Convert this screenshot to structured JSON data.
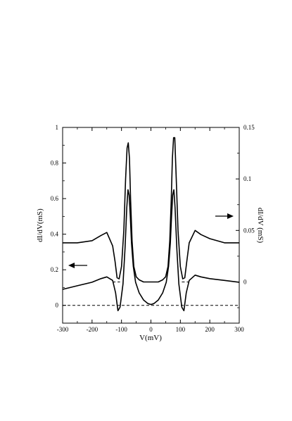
{
  "chart_data": {
    "type": "line",
    "xlabel": "V(mV)",
    "ylabel_left": "dI/dV(mS)",
    "ylabel_right": "dI/dV (mS)",
    "xlim": [
      -300,
      300
    ],
    "ylim_left": [
      -0.1,
      1.0
    ],
    "ylim_right": [
      -0.04,
      0.15
    ],
    "x_ticks": [
      -300,
      -200,
      -100,
      0,
      100,
      200,
      300
    ],
    "x_tick_labels": [
      "-300",
      "-200",
      "-100",
      "0",
      "100",
      "200",
      "300"
    ],
    "y_left_ticks": [
      0,
      0.2,
      0.4,
      0.6,
      0.8,
      1
    ],
    "y_left_tick_labels": [
      "0",
      "0.2",
      "0.4",
      "0.6",
      "0.8",
      "1"
    ],
    "y_right_ticks": [
      0,
      0.05,
      0.1,
      0.15
    ],
    "y_right_tick_labels": [
      "0",
      "0.05",
      "0.1",
      "0.15"
    ],
    "grid": false,
    "legend": "none",
    "series": [
      {
        "axis": "left",
        "x": [
          -300,
          -250,
          -200,
          -170,
          -150,
          -130,
          -120,
          -112,
          -105,
          -95,
          -88,
          -82,
          -78,
          -74,
          -70,
          -66,
          -60,
          -52,
          -40,
          -25,
          -10,
          0,
          10,
          25,
          40,
          52,
          60,
          66,
          70,
          74,
          78,
          82,
          88,
          95,
          105,
          112,
          120,
          130,
          150,
          170,
          200,
          250,
          300
        ],
        "y": [
          0.09,
          0.11,
          0.13,
          0.15,
          0.16,
          0.14,
          0.07,
          -0.03,
          -0.01,
          0.12,
          0.32,
          0.55,
          0.65,
          0.62,
          0.5,
          0.35,
          0.22,
          0.13,
          0.07,
          0.03,
          0.01,
          0.005,
          0.01,
          0.03,
          0.07,
          0.13,
          0.22,
          0.35,
          0.5,
          0.62,
          0.65,
          0.55,
          0.32,
          0.12,
          -0.01,
          -0.03,
          0.07,
          0.14,
          0.17,
          0.16,
          0.15,
          0.14,
          0.13
        ]
      },
      {
        "axis": "right",
        "x": [
          -300,
          -250,
          -200,
          -170,
          -150,
          -130,
          -122,
          -115,
          -108,
          -100,
          -92,
          -86,
          -81,
          -77,
          -73,
          -69,
          -64,
          -58,
          -50,
          -40,
          -25,
          0,
          25,
          40,
          50,
          58,
          64,
          69,
          73,
          77,
          81,
          86,
          92,
          100,
          108,
          115,
          122,
          130,
          150,
          170,
          200,
          250,
          300
        ],
        "y": [
          0.038,
          0.038,
          0.04,
          0.045,
          0.048,
          0.035,
          0.02,
          0.004,
          0.003,
          0.015,
          0.05,
          0.1,
          0.13,
          0.135,
          0.12,
          0.08,
          0.04,
          0.015,
          0.005,
          0.002,
          0.0,
          0.0,
          0.0,
          0.002,
          0.005,
          0.015,
          0.04,
          0.08,
          0.12,
          0.14,
          0.14,
          0.1,
          0.05,
          0.015,
          0.003,
          0.004,
          0.02,
          0.038,
          0.05,
          0.046,
          0.042,
          0.038,
          0.038
        ]
      }
    ],
    "reference_lines": [
      {
        "axis": "left",
        "y": 0,
        "x_range": [
          -300,
          300
        ],
        "style": "dashed"
      },
      {
        "axis": "right",
        "y": 0,
        "x_range": [
          -130,
          -105
        ],
        "style": "dashed"
      },
      {
        "axis": "right",
        "y": 0,
        "x_range": [
          105,
          130
        ],
        "style": "dashed"
      }
    ],
    "annotations": [
      {
        "kind": "arrow",
        "direction": "left",
        "indicates": "left-axis curve"
      },
      {
        "kind": "arrow",
        "direction": "right",
        "indicates": "right-axis curve"
      }
    ]
  }
}
